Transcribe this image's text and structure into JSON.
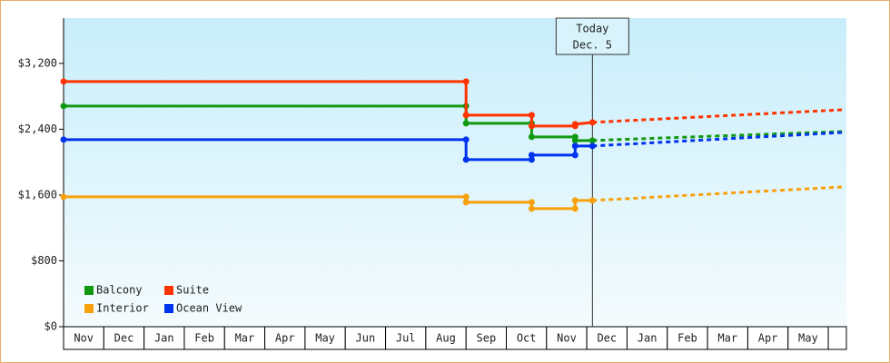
{
  "chart_data": {
    "type": "line",
    "categories": [
      "Nov",
      "Dec",
      "Jan",
      "Feb",
      "Mar",
      "Apr",
      "May",
      "Jun",
      "Jul",
      "Aug",
      "Sep",
      "Oct",
      "Nov",
      "Dec",
      "Jan",
      "Feb",
      "Mar",
      "Apr",
      "May"
    ],
    "x": [
      0,
      10,
      10,
      11.63,
      11.63,
      12.71,
      12.71,
      13.14,
      19.41
    ],
    "xlim": [
      0,
      19.45
    ],
    "series": [
      {
        "name": "Balcony",
        "color": "#109910",
        "values": [
          2682,
          2682,
          2472,
          2472,
          2307,
          2307,
          2263,
          2263,
          2373
        ]
      },
      {
        "name": "Suite",
        "color": "#ff3300",
        "values": [
          2980,
          2980,
          2571,
          2571,
          2439,
          2439,
          2461,
          2483,
          2638
        ]
      },
      {
        "name": "Interior",
        "color": "#f8a10c",
        "values": [
          1578,
          1578,
          1512,
          1512,
          1435,
          1435,
          1534,
          1534,
          1700
        ]
      },
      {
        "name": "Ocean View",
        "color": "#0033ee",
        "values": [
          2274,
          2274,
          2031,
          2031,
          2086,
          2086,
          2196,
          2196,
          2362
        ]
      }
    ],
    "ylim": [
      0,
      3750
    ],
    "yticks": [
      {
        "value": 0,
        "label": "$0"
      },
      {
        "value": 800,
        "label": "$800"
      },
      {
        "value": 1600,
        "label": "$1,600"
      },
      {
        "value": 2400,
        "label": "$2,400"
      },
      {
        "value": 3200,
        "label": "$3,200"
      }
    ],
    "annotation": {
      "lines": [
        "Today",
        "Dec. 5"
      ],
      "x": 13.14
    },
    "legend": "lower left"
  }
}
